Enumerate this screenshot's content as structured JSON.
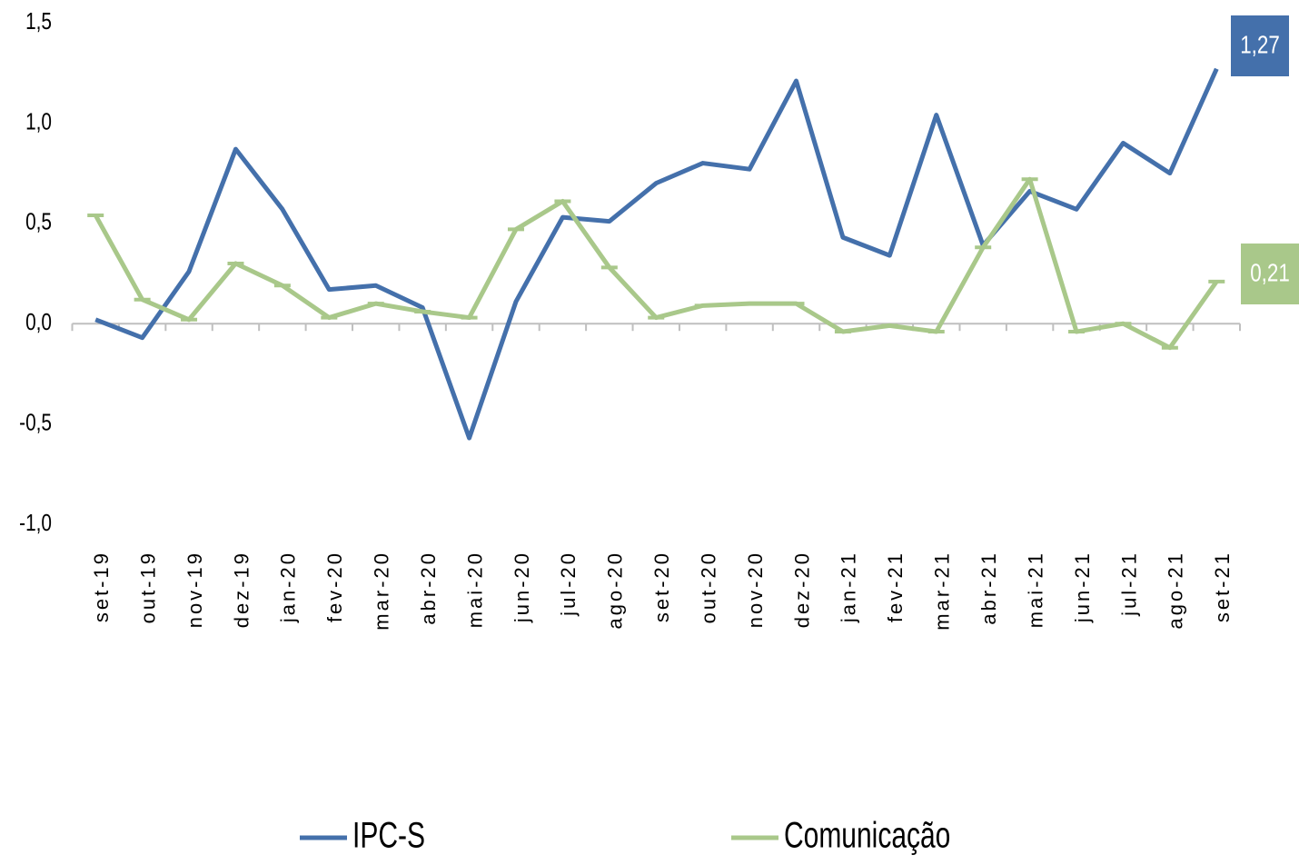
{
  "chart_data": {
    "type": "line",
    "categories": [
      "set-19",
      "out-19",
      "nov-19",
      "dez-19",
      "jan-20",
      "fev-20",
      "mar-20",
      "abr-20",
      "mai-20",
      "jun-20",
      "jul-20",
      "ago-20",
      "set-20",
      "out-20",
      "nov-20",
      "dez-20",
      "jan-21",
      "fev-21",
      "mar-21",
      "abr-21",
      "mai-21",
      "jun-21",
      "jul-21",
      "ago-21",
      "set-21"
    ],
    "series": [
      {
        "name": "IPC-S",
        "color": "#4470ab",
        "values": [
          0.02,
          -0.07,
          0.26,
          0.87,
          0.57,
          0.17,
          0.19,
          0.08,
          -0.57,
          0.11,
          0.53,
          0.51,
          0.7,
          0.8,
          0.77,
          1.21,
          0.43,
          0.34,
          1.04,
          0.39,
          0.66,
          0.57,
          0.9,
          0.75,
          1.27
        ],
        "value_labels": [
          null,
          null,
          null,
          null,
          null,
          null,
          null,
          null,
          null,
          null,
          null,
          null,
          null,
          null,
          null,
          null,
          null,
          null,
          null,
          null,
          null,
          null,
          null,
          null,
          "1,27"
        ]
      },
      {
        "name": "Comunicação",
        "color": "#a9c88a",
        "values": [
          0.54,
          0.12,
          0.02,
          0.3,
          0.19,
          0.03,
          0.1,
          0.06,
          0.03,
          0.47,
          0.61,
          0.28,
          0.03,
          0.09,
          0.1,
          0.1,
          -0.04,
          -0.01,
          -0.04,
          0.38,
          0.72,
          -0.04,
          0.0,
          -0.12,
          0.21
        ],
        "value_labels": [
          null,
          null,
          null,
          null,
          null,
          null,
          null,
          null,
          null,
          null,
          null,
          null,
          null,
          null,
          null,
          null,
          null,
          null,
          null,
          null,
          null,
          null,
          null,
          null,
          "0,21"
        ]
      }
    ],
    "ylim": [
      -1.0,
      1.5
    ],
    "yticks": [
      {
        "value": -1.0,
        "label": "-1,0"
      },
      {
        "value": -0.5,
        "label": "-0,5"
      },
      {
        "value": 0.0,
        "label": "0,0"
      },
      {
        "value": 0.5,
        "label": "0,5"
      },
      {
        "value": 1.0,
        "label": "1,0"
      },
      {
        "value": 1.5,
        "label": "1,5"
      }
    ],
    "grid": false,
    "legend": "bottom"
  }
}
